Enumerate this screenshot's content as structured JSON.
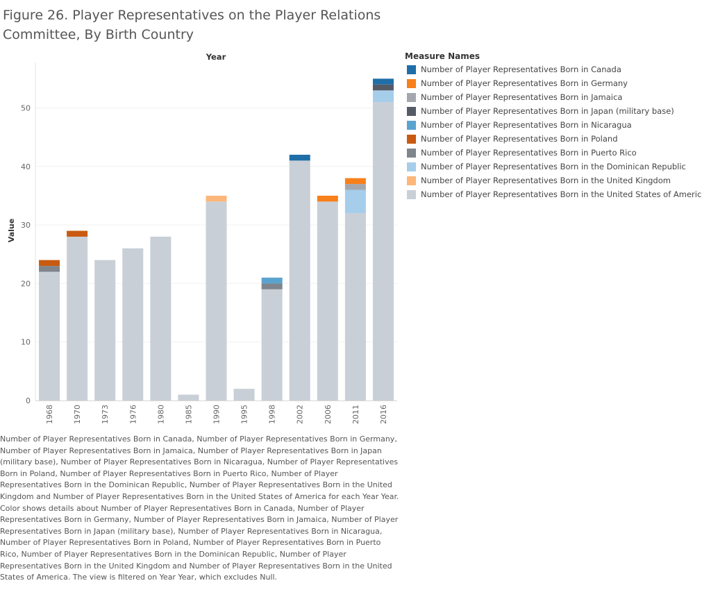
{
  "title": "Figure 26. Player Representatives on the Player Relations Committee, By Birth Country",
  "caption": "Number of Player Representatives Born in Canada, Number of Player Representatives Born in Germany, Number of Player Representatives Born in Jamaica, Number of Player Representatives Born in Japan (military base), Number of Player Representatives Born in Nicaragua, Number of Player Representatives Born in Poland, Number of Player Representatives Born in Puerto Rico, Number of Player Representatives Born in the Dominican Republic, Number of Player Representatives Born in the United Kingdom and Number of Player Representatives Born in the United States of America for each Year Year.  Color shows details about Number of Player Representatives Born in Canada, Number of Player Representatives Born in Germany, Number of Player Representatives Born in Jamaica, Number of Player Representatives Born in Japan (military base), Number of Player Representatives Born in Nicaragua, Number of Player Representatives Born in Poland, Number of Player Representatives Born in Puerto Rico, Number of Player Representatives Born in the Dominican Republic, Number of Player Representatives Born in the United Kingdom and Number of Player Representatives Born in the United States of America. The view is filtered on Year Year, which excludes Null.",
  "chart_data": {
    "type": "bar",
    "stacked": true,
    "xlabel": "Year",
    "ylabel": "Value",
    "legend_title": "Measure Names",
    "legend_placement": "right",
    "ylim": [
      0,
      57
    ],
    "yticks": [
      0,
      10,
      20,
      30,
      40,
      50
    ],
    "grid": true,
    "categories": [
      "1968",
      "1970",
      "1973",
      "1976",
      "1980",
      "1985",
      "1990",
      "1995",
      "1998",
      "2002",
      "2006",
      "2011",
      "2016"
    ],
    "series": [
      {
        "name": "Number of Player Representatives Born in the United States of America",
        "color": "#c9cfd6",
        "values": [
          22,
          28,
          24,
          26,
          28,
          1,
          34,
          2,
          19,
          41,
          34,
          32,
          51
        ]
      },
      {
        "name": "Number of Player Representatives Born in Puerto Rico",
        "color": "#7f858c",
        "values": [
          1,
          0,
          0,
          0,
          0,
          0,
          0,
          0,
          1,
          0,
          0,
          0,
          0
        ]
      },
      {
        "name": "Number of Player Representatives Born in Poland",
        "color": "#c85a11",
        "values": [
          1,
          1,
          0,
          0,
          0,
          0,
          0,
          0,
          0,
          0,
          0,
          0,
          0
        ]
      },
      {
        "name": "Number of Player Representatives Born in Nicaragua",
        "color": "#5ba3cf",
        "values": [
          0,
          0,
          0,
          0,
          0,
          0,
          0,
          0,
          1,
          0,
          0,
          0,
          0
        ]
      },
      {
        "name": "Number of Player Representatives Born in the Dominican Republic",
        "color": "#a6cdea",
        "values": [
          0,
          0,
          0,
          0,
          0,
          0,
          0,
          0,
          0,
          0,
          0,
          4,
          2
        ]
      },
      {
        "name": "Number of Player Representatives Born in Jamaica",
        "color": "#a4a8ae",
        "values": [
          0,
          0,
          0,
          0,
          0,
          0,
          0,
          0,
          0,
          0,
          0,
          1,
          0
        ]
      },
      {
        "name": "Number of Player Representatives Born in Japan (military base)",
        "color": "#555b66",
        "values": [
          0,
          0,
          0,
          0,
          0,
          0,
          0,
          0,
          0,
          0,
          0,
          0,
          1
        ]
      },
      {
        "name": "Number of Player Representatives Born in the United Kingdom",
        "color": "#fdb77a",
        "values": [
          0,
          0,
          0,
          0,
          0,
          0,
          1,
          0,
          0,
          0,
          0,
          0,
          0
        ]
      },
      {
        "name": "Number of Player Representatives Born in Germany",
        "color": "#f7801a",
        "values": [
          0,
          0,
          0,
          0,
          0,
          0,
          0,
          0,
          0,
          0,
          1,
          1,
          0
        ]
      },
      {
        "name": "Number of Player Representatives Born in Canada",
        "color": "#1f6ea8",
        "values": [
          0,
          0,
          0,
          0,
          0,
          0,
          0,
          0,
          0,
          1,
          0,
          0,
          1
        ]
      }
    ],
    "legend_order": [
      "Number of Player Representatives Born in Canada",
      "Number of Player Representatives Born in Germany",
      "Number of Player Representatives Born in Jamaica",
      "Number of Player Representatives Born in Japan (military base)",
      "Number of Player Representatives Born in Nicaragua",
      "Number of Player Representatives Born in Poland",
      "Number of Player Representatives Born in Puerto Rico",
      "Number of Player Representatives Born in the Dominican Republic",
      "Number of Player Representatives Born in the United Kingdom",
      "Number of Player Representatives Born in the United States of America"
    ]
  }
}
